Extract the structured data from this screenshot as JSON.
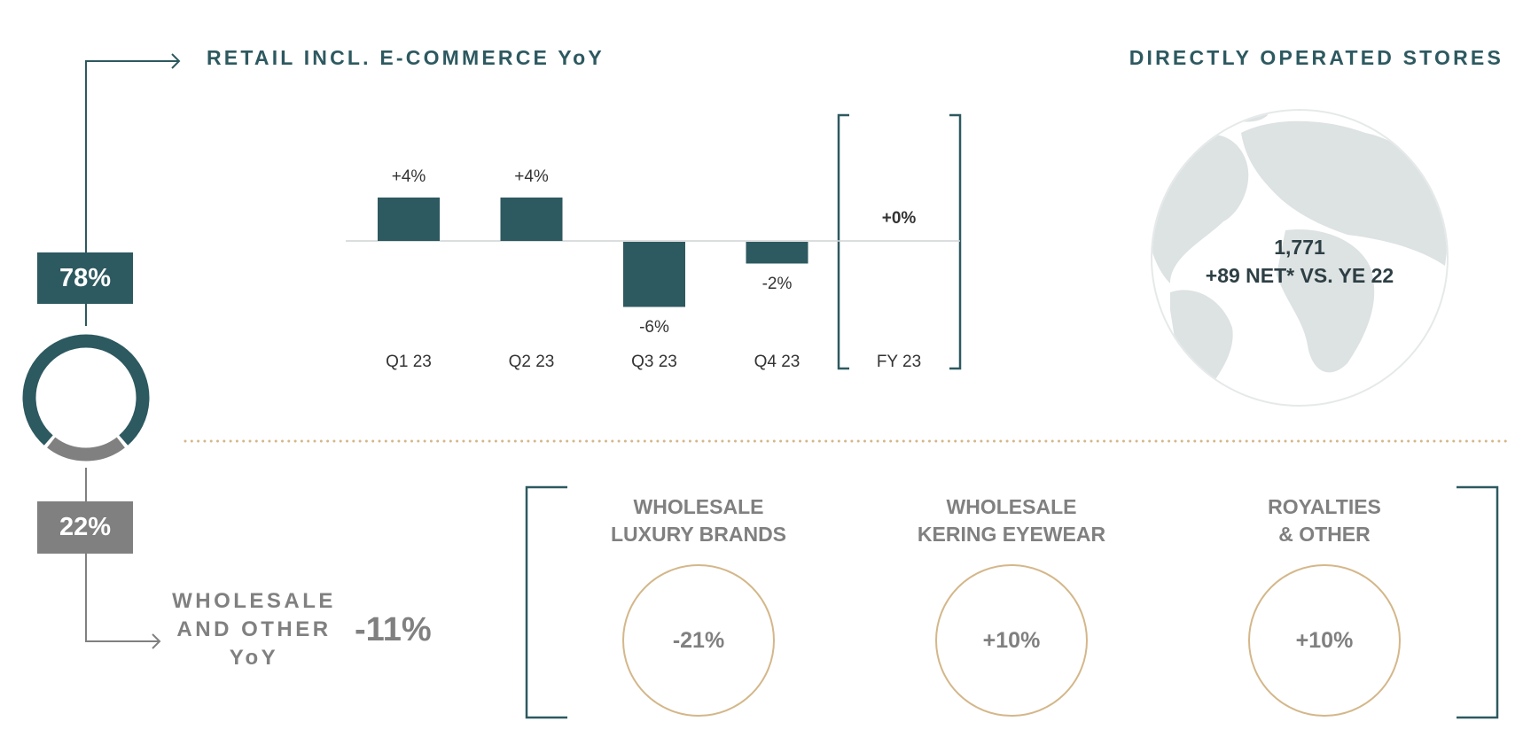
{
  "colors": {
    "teal": "#2d5960",
    "gray": "#808080",
    "gold": "#d4b78a",
    "globe": "#dde2e2"
  },
  "retail": {
    "title": "RETAIL INCL. E-COMMERCE YoY",
    "share": "78%"
  },
  "wholesale": {
    "share": "22%",
    "label_lines": [
      "WHOLESALE",
      "AND OTHER",
      "YoY"
    ],
    "value": "-11%"
  },
  "donut": {
    "retail_share": 78,
    "wholesale_share": 22
  },
  "stores": {
    "title": "DIRECTLY OPERATED STORES",
    "count": "1,771",
    "change": "+89 NET* VS. YE 22",
    "icon": "globe-icon"
  },
  "chart_data": {
    "type": "bar",
    "categories": [
      "Q1 23",
      "Q2 23",
      "Q3 23",
      "Q4 23"
    ],
    "values": [
      4,
      4,
      -6,
      -2
    ],
    "value_labels": [
      "+4%",
      "+4%",
      "-6%",
      "-2%"
    ],
    "unit": "%",
    "total": {
      "label": "FY 23",
      "value": 0,
      "value_label": "+0%"
    },
    "grid": false
  },
  "breakdown": [
    {
      "title_lines": [
        "WHOLESALE",
        "LUXURY BRANDS"
      ],
      "value": "-21%"
    },
    {
      "title_lines": [
        "WHOLESALE",
        "KERING EYEWEAR"
      ],
      "value": "+10%"
    },
    {
      "title_lines": [
        "ROYALTIES",
        "& OTHER"
      ],
      "value": "+10%"
    }
  ]
}
